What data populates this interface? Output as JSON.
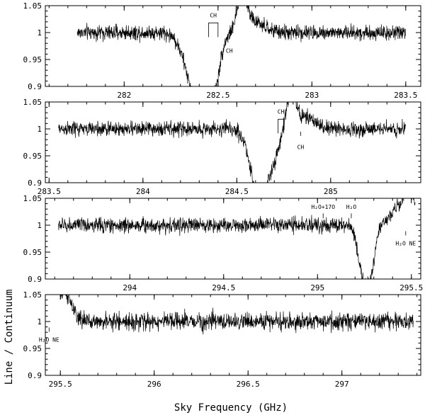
{
  "figure": {
    "ylabel": "Line / Continuum",
    "xlabel": "Sky Frequency (GHz)"
  },
  "chart_data": [
    {
      "type": "line",
      "panel": 1,
      "xlim": [
        281.58,
        283.58
      ],
      "ylim": [
        0.9,
        1.05
      ],
      "x_ticks": [
        282,
        282.5,
        283,
        283.5
      ],
      "x_tick_labels": [
        "282",
        "282.5",
        "283",
        "283.5"
      ],
      "y_ticks": [
        0.9,
        0.95,
        1,
        1.05
      ],
      "y_tick_labels": [
        "0.9",
        "0.95",
        "1",
        "1.05"
      ],
      "data_range": [
        281.75,
        283.5
      ],
      "noise": 0.007,
      "features": [
        {
          "center": 282.4,
          "width": 0.06,
          "depth": -0.14
        },
        {
          "center": 282.48,
          "width": 0.03,
          "depth": -0.06
        },
        {
          "center": 282.63,
          "width": 0.025,
          "depth": 0.06
        },
        {
          "center": 282.68,
          "width": 0.06,
          "depth": 0.02
        }
      ],
      "annotations": [
        {
          "text": "CH",
          "x": [
            282.45,
            282.5
          ],
          "y": 1.018,
          "style": "bracket",
          "label_y": 1.028
        },
        {
          "text": "CH",
          "x": [
            282.56
          ],
          "y": 0.987,
          "style": "tick-up",
          "label_y": 0.968
        }
      ]
    },
    {
      "type": "line",
      "panel": 2,
      "xlim": [
        283.48,
        285.48
      ],
      "ylim": [
        0.9,
        1.05
      ],
      "x_ticks": [
        283.5,
        284,
        284.5,
        285
      ],
      "x_tick_labels": [
        "283.5",
        "284",
        "284.5",
        "285"
      ],
      "y_ticks": [
        0.9,
        0.95,
        1,
        1.05
      ],
      "y_tick_labels": [
        "0.9",
        "0.95",
        "1",
        "1.05"
      ],
      "data_range": [
        283.55,
        285.4
      ],
      "noise": 0.007,
      "features": [
        {
          "center": 284.62,
          "width": 0.045,
          "depth": -0.13
        },
        {
          "center": 284.7,
          "width": 0.03,
          "depth": -0.04
        },
        {
          "center": 284.79,
          "width": 0.025,
          "depth": 0.06
        },
        {
          "center": 284.86,
          "width": 0.06,
          "depth": 0.02
        }
      ],
      "annotations": [
        {
          "text": "CH",
          "x": [
            284.72,
            284.75
          ],
          "y": 1.018,
          "style": "bracket",
          "label_y": 1.028
        },
        {
          "text": "CH",
          "x": [
            284.84
          ],
          "y": 0.987,
          "style": "tick-up",
          "label_y": 0.968
        }
      ]
    },
    {
      "type": "line",
      "panel": 3,
      "xlim": [
        293.55,
        295.55
      ],
      "ylim": [
        0.9,
        1.05
      ],
      "x_ticks": [
        294,
        294.5,
        295,
        295.5
      ],
      "x_tick_labels": [
        "294",
        "294.5",
        "295",
        "295.5"
      ],
      "y_ticks": [
        0.9,
        0.95,
        1,
        1.05
      ],
      "y_tick_labels": [
        "0.9",
        "0.95",
        "1",
        "1.05"
      ],
      "data_range": [
        293.62,
        295.52
      ],
      "noise": 0.007,
      "features": [
        {
          "center": 295.25,
          "width": 0.03,
          "depth": -0.1
        },
        {
          "center": 295.29,
          "width": 0.02,
          "depth": -0.05
        },
        {
          "center": 295.45,
          "width": 0.05,
          "depth": 0.04
        },
        {
          "center": 295.49,
          "width": 0.02,
          "depth": 0.05
        }
      ],
      "annotations": [
        {
          "text": "H₂O+17O",
          "x": [
            295.03
          ],
          "y": 1.022,
          "style": "tick-down",
          "label_y": 1.03
        },
        {
          "text": "H₂O",
          "x": [
            295.18
          ],
          "y": 1.022,
          "style": "tick-down",
          "label_y": 1.03
        },
        {
          "text": "H₂O NE",
          "x": [
            295.47
          ],
          "y": 0.981,
          "style": "tick-up",
          "label_y": 0.968
        }
      ]
    },
    {
      "type": "line",
      "panel": 4,
      "xlim": [
        295.42,
        297.42
      ],
      "ylim": [
        0.9,
        1.05
      ],
      "x_ticks": [
        295.5,
        296,
        296.5,
        297
      ],
      "x_tick_labels": [
        "295.5",
        "296",
        "296.5",
        "297"
      ],
      "y_ticks": [
        0.9,
        0.95,
        1,
        1.05
      ],
      "y_tick_labels": [
        "0.9",
        "0.95",
        "1",
        "1.05"
      ],
      "data_range": [
        295.5,
        297.38
      ],
      "noise": 0.008,
      "features": [
        {
          "center": 295.52,
          "width": 0.025,
          "depth": 0.05
        },
        {
          "center": 295.56,
          "width": 0.03,
          "depth": 0.015
        }
      ],
      "annotations": [
        {
          "text": "H₂O NE",
          "x": [
            295.44
          ],
          "y": 0.981,
          "style": "tick-up",
          "label_y": 0.968
        }
      ]
    }
  ]
}
